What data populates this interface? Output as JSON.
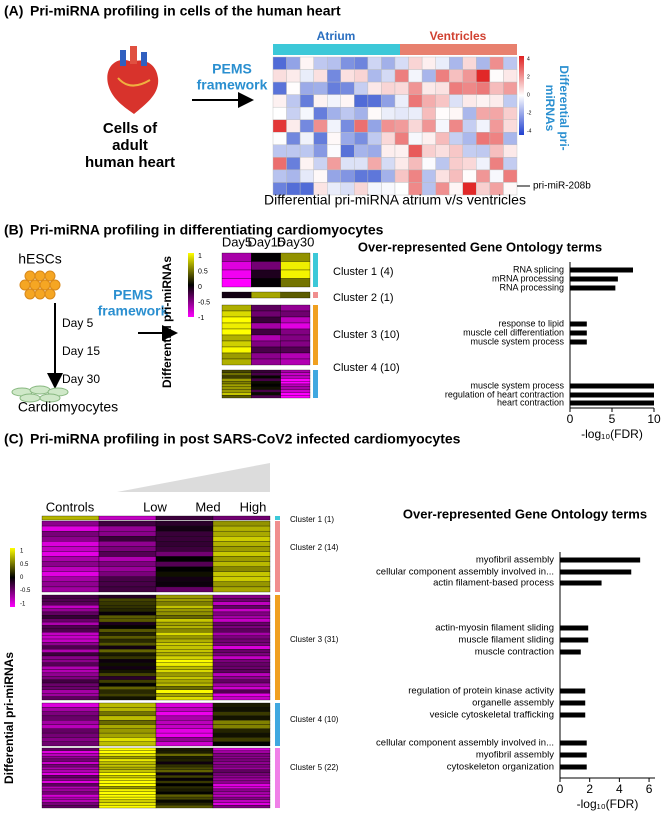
{
  "panel_a": {
    "label": "(A)",
    "title": "Pri-miRNA profiling in cells of the human heart",
    "heart_label": [
      "Cells of",
      "adult",
      "human heart"
    ],
    "framework": [
      "PEMS",
      "framework"
    ],
    "groups": [
      "Atrium",
      "Ventricles"
    ],
    "scale_ticks": [
      4,
      2,
      0,
      -2,
      -4
    ],
    "y_label": [
      "Differential pri-",
      "miRNAs"
    ],
    "annotation": "pri-miR-208b",
    "caption": "Differential pri-miRNA atrium v/s ventricles"
  },
  "panel_b": {
    "label": "(B)",
    "title": "Pri-miRNA profiling in differentiating cardiomyocytes",
    "source": "hESCs",
    "days": [
      "Day 5",
      "Day 15",
      "Day 30"
    ],
    "target": "Cardiomyocytes",
    "framework": [
      "PEMS",
      "framework"
    ],
    "columns": [
      "Day5",
      "Day15",
      "Day30"
    ],
    "y_label": "Differential pri-miRNAs",
    "scale_ticks": [
      1,
      0.5,
      0,
      -0.5,
      -1
    ],
    "clusters": [
      "Cluster 1 (4)",
      "Cluster 2 (1)",
      "Cluster 3 (10)",
      "Cluster 4 (10)"
    ],
    "chart_data": {
      "type": "bar",
      "orientation": "horizontal",
      "title": "Over-represented Gene Ontology terms",
      "categories": [
        "RNA splicing",
        "mRNA processing",
        "RNA processing",
        "response to lipid",
        "muscle cell differentiation",
        "muscle system process",
        "muscle system process",
        "regulation of heart contraction",
        "heart contraction"
      ],
      "values": [
        7.5,
        5.7,
        5.4,
        2,
        2,
        2,
        10,
        10,
        10
      ],
      "color": "#000000",
      "xlim": [
        0,
        10
      ],
      "xticks": [
        0,
        5,
        10
      ],
      "x_label": "-log₁₀(FDR)"
    }
  },
  "panel_c": {
    "label": "(C)",
    "title": "Pri-miRNA profiling in post SARS-CoV2 infected cardiomyocytes",
    "columns": [
      "Controls",
      "Low",
      "Med",
      "High"
    ],
    "y_label": "Differential pri-miRNAs",
    "scale_ticks": [
      1,
      0.5,
      0,
      -0.5,
      -1
    ],
    "clusters": [
      "Cluster 1 (1)",
      "Cluster 2 (14)",
      "Cluster 3 (31)",
      "Cluster 4 (10)",
      "Cluster 5 (22)"
    ],
    "chart_data": {
      "type": "bar",
      "orientation": "horizontal",
      "title": "Over-represented Gene Ontology terms",
      "categories": [
        "myofibril assembly",
        "cellular component assembly involved in...",
        "actin filament-based process",
        "actin-myosin filament sliding",
        "muscle filament sliding",
        "muscle contraction",
        "regulation of protein kinase activity",
        "organelle assembly",
        "vesicle cytoskeletal trafficking",
        "cellular component assembly involved in...",
        "myofibril assembly",
        "cytoskeleton organization"
      ],
      "values": [
        5.4,
        4.8,
        2.8,
        1.9,
        1.9,
        1.4,
        1.7,
        1.7,
        1.7,
        1.8,
        1.8,
        1.8
      ],
      "color": "#000000",
      "xlim": [
        0,
        6.4
      ],
      "xticks": [
        0,
        2,
        4,
        6
      ],
      "x_label": "-log₁₀(FDR)"
    }
  }
}
